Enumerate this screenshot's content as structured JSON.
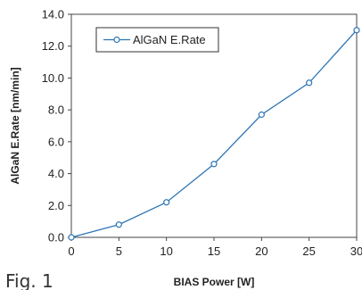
{
  "figure_label": "Fig. 1",
  "chart_data": {
    "type": "line",
    "xlabel": "BIAS Power  [W]",
    "ylabel": "AlGaN E.Rate  [nm/min]",
    "xlim": [
      0,
      30
    ],
    "ylim": [
      0,
      14
    ],
    "x_ticks": [
      "0",
      "5",
      "10",
      "15",
      "20",
      "25",
      "30"
    ],
    "y_ticks": [
      "0.0",
      "2.0",
      "4.0",
      "6.0",
      "8.0",
      "10.0",
      "12.0",
      "14.0"
    ],
    "grid": false,
    "legend_position": "top-left",
    "series": [
      {
        "name": "AlGaN E.Rate",
        "color": "#2e75b6",
        "marker": "open-circle",
        "x": [
          0,
          5,
          10,
          15,
          20,
          25,
          30
        ],
        "y": [
          0.0,
          0.8,
          2.2,
          4.6,
          7.7,
          9.7,
          13.0
        ]
      }
    ]
  }
}
